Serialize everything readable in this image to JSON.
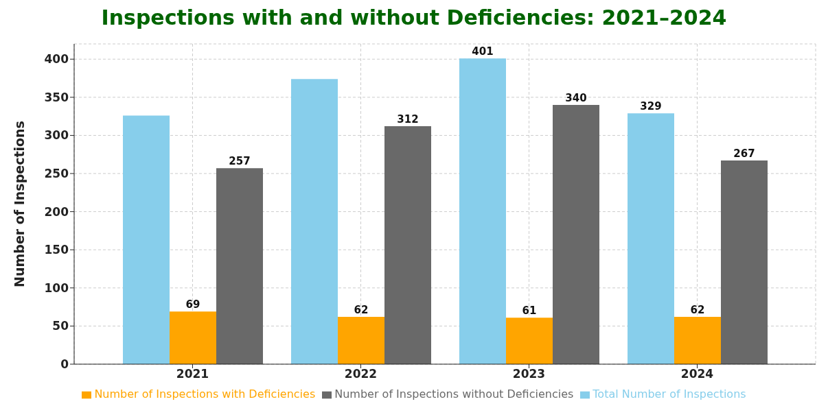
{
  "chart_data": {
    "type": "bar",
    "title": "Inspections with and without Deficiencies: 2021–2024",
    "ylabel": "Number of Inspections",
    "categories": [
      "2021",
      "2022",
      "2023",
      "2024"
    ],
    "series": [
      {
        "name": "Total Number of Inspections",
        "color": "#87ceeb",
        "values": [
          326,
          374,
          401,
          329
        ],
        "value_labels": [
          null,
          null,
          "401",
          "329"
        ]
      },
      {
        "name": "Number of Inspections with Deficiencies",
        "color": "#ffa500",
        "values": [
          69,
          62,
          61,
          62
        ],
        "value_labels": [
          "69",
          "62",
          "61",
          "62"
        ]
      },
      {
        "name": "Number of Inspections without Deficiencies",
        "color": "#696969",
        "values": [
          257,
          312,
          340,
          267
        ],
        "value_labels": [
          "257",
          "312",
          "340",
          "267"
        ]
      }
    ],
    "ylim": [
      0,
      420
    ],
    "yticks": [
      0,
      50,
      100,
      150,
      200,
      250,
      300,
      350,
      400
    ],
    "grid": true,
    "legend": "bottom"
  }
}
